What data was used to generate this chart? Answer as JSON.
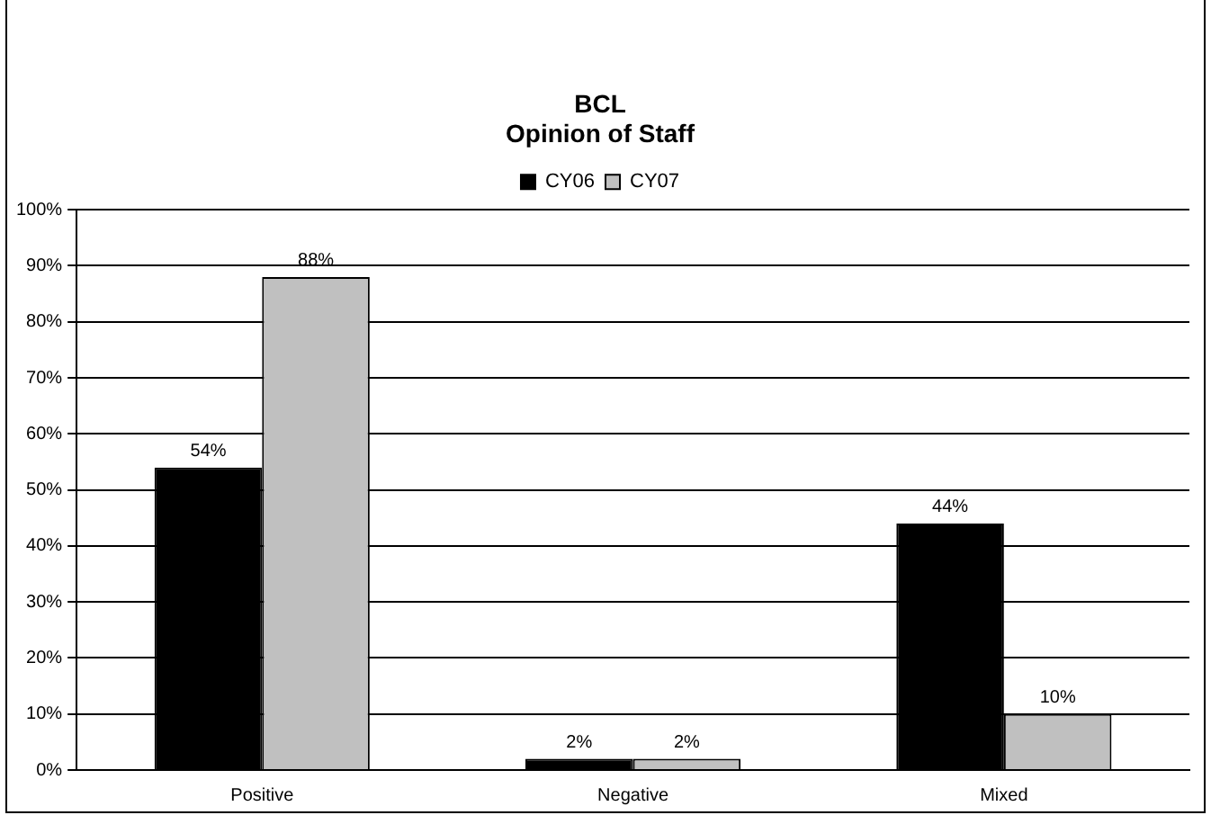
{
  "chart_data": {
    "type": "bar",
    "title": [
      "BCL",
      "Opinion of Staff"
    ],
    "categories": [
      "Positive",
      "Negative",
      "Mixed"
    ],
    "series": [
      {
        "name": "CY06",
        "color": "#000000",
        "values": [
          54,
          2,
          44
        ],
        "value_labels": [
          "54%",
          "2%",
          "44%"
        ]
      },
      {
        "name": "CY07",
        "color": "#c0c0c0",
        "values": [
          88,
          2,
          10
        ],
        "value_labels": [
          "88%",
          "2%",
          "10%"
        ]
      }
    ],
    "ylim": [
      0,
      100
    ],
    "yticks": [
      {
        "value": 0,
        "label": "0%"
      },
      {
        "value": 10,
        "label": "10%"
      },
      {
        "value": 20,
        "label": "20%"
      },
      {
        "value": 30,
        "label": "30%"
      },
      {
        "value": 40,
        "label": "40%"
      },
      {
        "value": 50,
        "label": "50%"
      },
      {
        "value": 60,
        "label": "60%"
      },
      {
        "value": 70,
        "label": "70%"
      },
      {
        "value": 80,
        "label": "80%"
      },
      {
        "value": 90,
        "label": "90%"
      },
      {
        "value": 100,
        "label": "100%"
      }
    ],
    "grid": "y",
    "legend": "top"
  }
}
